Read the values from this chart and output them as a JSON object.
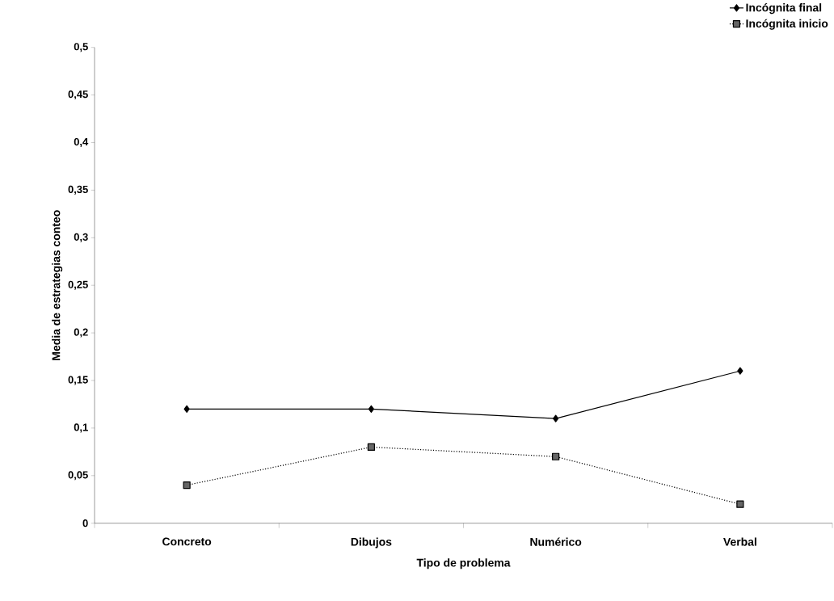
{
  "chart_data": {
    "type": "line",
    "xlabel": "Tipo de problema",
    "ylabel": "Media de estrategias conteo",
    "categories": [
      "Concreto",
      "Dibujos",
      "Numérico",
      "Verbal"
    ],
    "series": [
      {
        "name": "Incógnita final",
        "color": "#000000",
        "values": [
          0.12,
          0.12,
          0.11,
          0.16
        ],
        "marker": "diamond",
        "line_style": "solid"
      },
      {
        "name": "Incógnita inicio",
        "color": "#000000",
        "values": [
          0.04,
          0.08,
          0.07,
          0.02
        ],
        "marker": "square",
        "line_style": "dotted"
      }
    ],
    "ylim": [
      0,
      0.5
    ],
    "yticks": [
      {
        "value": 0,
        "label": "0"
      },
      {
        "value": 0.05,
        "label": "0,05"
      },
      {
        "value": 0.1,
        "label": "0,1"
      },
      {
        "value": 0.15,
        "label": "0,15"
      },
      {
        "value": 0.2,
        "label": "0,2"
      },
      {
        "value": 0.25,
        "label": "0,25"
      },
      {
        "value": 0.3,
        "label": "0,3"
      },
      {
        "value": 0.35,
        "label": "0,35"
      },
      {
        "value": 0.4,
        "label": "0,4"
      },
      {
        "value": 0.45,
        "label": "0,45"
      },
      {
        "value": 0.5,
        "label": "0,5"
      }
    ],
    "grid": false,
    "legend": "top right"
  }
}
